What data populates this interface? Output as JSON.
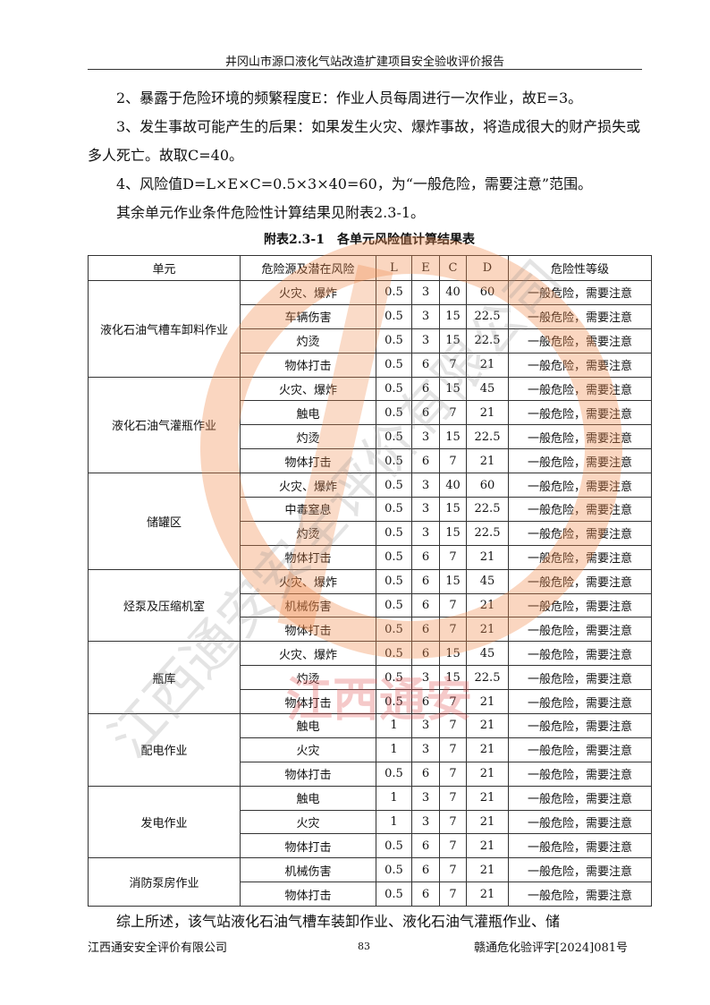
{
  "header": "井冈山市源口液化气站改造扩建项目安全验收评价报告",
  "paragraphs": [
    "　　2、暴露于危险环境的频繁程度E：作业人员每周进行一次作业，故E=3。",
    "　　3、发生事故可能产生的后果：如果发生火灾、爆炸事故，将造成很大的财产损失或多人死亡。故取C=40。",
    "　　4、风险值D=L×E×C=0.5×3×40=60，为“一般危险，需要注意”范围。",
    "　　其余单元作业条件危险性计算结果见附表2.3-1。"
  ],
  "table_caption": "附表2.3-1　各单元风险值计算结果表",
  "table_headers": [
    "单元",
    "危险源及潜在风险",
    "L",
    "E",
    "C",
    "D",
    "危险性等级"
  ],
  "groups": [
    {
      "unit": "液化石油气槽车卸料作业",
      "rows": [
        [
          "火灾、爆炸",
          "0.5",
          "3",
          "40",
          "60",
          "一般危险，需要注意"
        ],
        [
          "车辆伤害",
          "0.5",
          "3",
          "15",
          "22.5",
          "一般危险，需要注意"
        ],
        [
          "灼烫",
          "0.5",
          "3",
          "15",
          "22.5",
          "一般危险，需要注意"
        ],
        [
          "物体打击",
          "0.5",
          "6",
          "7",
          "21",
          "一般危险，需要注意"
        ]
      ]
    },
    {
      "unit": "液化石油气灌瓶作业",
      "rows": [
        [
          "火灾、爆炸",
          "0.5",
          "6",
          "15",
          "45",
          "一般危险，需要注意"
        ],
        [
          "触电",
          "0.5",
          "6",
          "7",
          "21",
          "一般危险，需要注意"
        ],
        [
          "灼烫",
          "0.5",
          "3",
          "15",
          "22.5",
          "一般危险，需要注意"
        ],
        [
          "物体打击",
          "0.5",
          "6",
          "7",
          "21",
          "一般危险，需要注意"
        ]
      ]
    },
    {
      "unit": "储罐区",
      "rows": [
        [
          "火灾、爆炸",
          "0.5",
          "3",
          "40",
          "60",
          "一般危险，需要注意"
        ],
        [
          "中毒窒息",
          "0.5",
          "3",
          "15",
          "22.5",
          "一般危险，需要注意"
        ],
        [
          "灼烫",
          "0.5",
          "3",
          "15",
          "22.5",
          "一般危险，需要注意"
        ],
        [
          "物体打击",
          "0.5",
          "6",
          "7",
          "21",
          "一般危险，需要注意"
        ]
      ]
    },
    {
      "unit": "烃泵及压缩机室",
      "rows": [
        [
          "火灾、爆炸",
          "0.5",
          "6",
          "15",
          "45",
          "一般危险，需要注意"
        ],
        [
          "机械伤害",
          "0.5",
          "6",
          "7",
          "21",
          "一般危险，需要注意"
        ],
        [
          "物体打击",
          "0.5",
          "6",
          "7",
          "21",
          "一般危险，需要注意"
        ]
      ]
    },
    {
      "unit": "瓶库",
      "rows": [
        [
          "火灾、爆炸",
          "0.5",
          "6",
          "15",
          "45",
          "一般危险，需要注意"
        ],
        [
          "灼烫",
          "0.5",
          "3",
          "15",
          "22.5",
          "一般危险，需要注意"
        ],
        [
          "物体打击",
          "0.5",
          "6",
          "7",
          "21",
          "一般危险，需要注意"
        ]
      ]
    },
    {
      "unit": "配电作业",
      "rows": [
        [
          "触电",
          "1",
          "3",
          "7",
          "21",
          "一般危险，需要注意"
        ],
        [
          "火灾",
          "1",
          "3",
          "7",
          "21",
          "一般危险，需要注意"
        ],
        [
          "物体打击",
          "0.5",
          "6",
          "7",
          "21",
          "一般危险，需要注意"
        ]
      ]
    },
    {
      "unit": "发电作业",
      "rows": [
        [
          "触电",
          "1",
          "3",
          "7",
          "21",
          "一般危险，需要注意"
        ],
        [
          "火灾",
          "1",
          "3",
          "7",
          "21",
          "一般危险，需要注意"
        ],
        [
          "物体打击",
          "0.5",
          "6",
          "7",
          "21",
          "一般危险，需要注意"
        ]
      ]
    },
    {
      "unit": "消防泵房作业",
      "rows": [
        [
          "机械伤害",
          "0.5",
          "6",
          "7",
          "21",
          "一般危险，需要注意"
        ],
        [
          "物体打击",
          "0.5",
          "6",
          "7",
          "21",
          "一般危险，需要注意"
        ]
      ]
    }
  ],
  "closing": "　　综上所述，该气站液化石油气槽车装卸作业、液化石油气灌瓶作业、储",
  "footer": {
    "company": "江西通安安全评价有限公司",
    "page": "83",
    "doc_no": "赣通危化验评字[2024]081号"
  },
  "watermark": {
    "text": "江西通安安全评价有限公司",
    "stamp": "江西通安"
  }
}
